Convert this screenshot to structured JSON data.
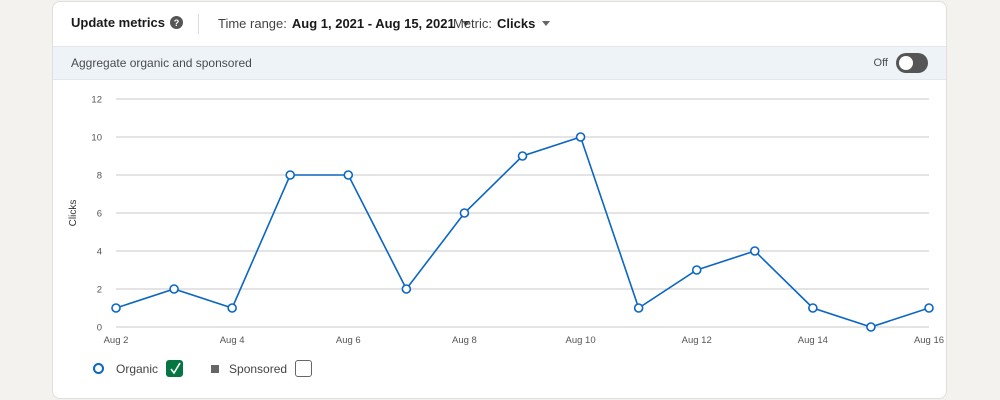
{
  "toolbar": {
    "title": "Update metrics",
    "time_range_label": "Time range:",
    "time_range_value": "Aug 1, 2021 - Aug 15, 2021",
    "metric_label": "Metric:",
    "metric_value": "Clicks"
  },
  "aggregate": {
    "label": "Aggregate organic and sponsored",
    "toggle_label": "Off",
    "toggle_on": false
  },
  "legend": {
    "organic_label": "Organic",
    "organic_checked": true,
    "sponsored_label": "Sponsored",
    "sponsored_checked": false
  },
  "colors": {
    "line": "#0a66c2",
    "checkbox_checked": "#057642",
    "grid": "#c8c8c8"
  },
  "chart_data": {
    "type": "line",
    "ylabel": "Clicks",
    "ylim": [
      0,
      12
    ],
    "yticks": [
      0,
      2,
      4,
      6,
      8,
      10,
      12
    ],
    "x_tick_labels": [
      "Aug 2",
      "Aug 4",
      "Aug 6",
      "Aug 8",
      "Aug 10",
      "Aug 12",
      "Aug 14",
      "Aug 16"
    ],
    "x": [
      "Aug 2",
      "Aug 3",
      "Aug 4",
      "Aug 5",
      "Aug 6",
      "Aug 7",
      "Aug 8",
      "Aug 9",
      "Aug 10",
      "Aug 11",
      "Aug 12",
      "Aug 13",
      "Aug 14",
      "Aug 15",
      "Aug 16"
    ],
    "series": [
      {
        "name": "Organic",
        "values": [
          1,
          2,
          1,
          8,
          8,
          2,
          6,
          9,
          10,
          1,
          3,
          4,
          1,
          0,
          1
        ]
      }
    ],
    "grid": true,
    "legend_placement": "bottom-left"
  }
}
